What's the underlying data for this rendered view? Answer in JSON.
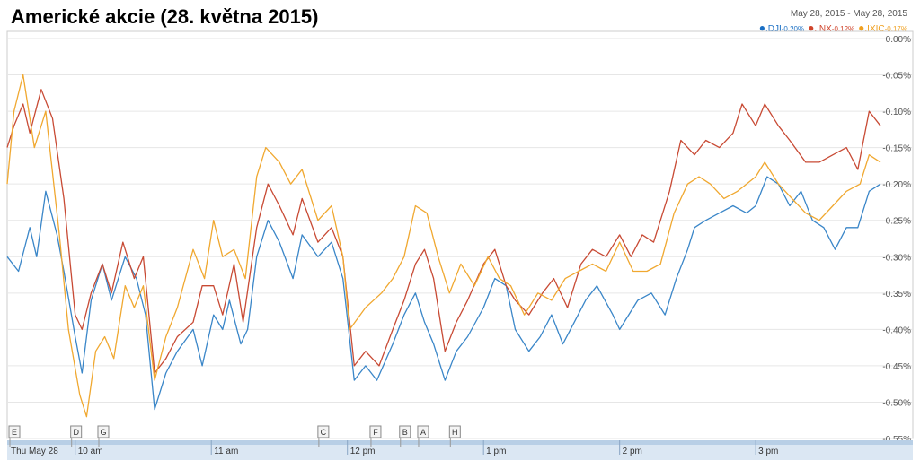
{
  "chart_data": {
    "type": "line",
    "title": "Americké akcie (28. května 2015)",
    "date_range": {
      "from": "May 28, 2015",
      "separator": "-",
      "to": "May 28, 2015"
    },
    "y_unit": "%",
    "ylim": [
      -0.55,
      0.0
    ],
    "yticks": [
      0.0,
      -0.05,
      -0.1,
      -0.15,
      -0.2,
      -0.25,
      -0.3,
      -0.35,
      -0.4,
      -0.45,
      -0.5,
      -0.55
    ],
    "ytick_labels": [
      "0.00%",
      "-0.05%",
      "-0.10%",
      "-0.15%",
      "-0.20%",
      "-0.25%",
      "-0.30%",
      "-0.35%",
      "-0.40%",
      "-0.45%",
      "-0.50%",
      "-0.55%"
    ],
    "x_range": [
      "09:30",
      "15:55"
    ],
    "xticks": [
      {
        "time": "09:30",
        "label": "Thu May 28"
      },
      {
        "time": "10:00",
        "label": "10 am"
      },
      {
        "time": "11:00",
        "label": "11 am"
      },
      {
        "time": "12:00",
        "label": "12 pm"
      },
      {
        "time": "13:00",
        "label": "1 pm"
      },
      {
        "time": "14:00",
        "label": "2 pm"
      },
      {
        "time": "15:00",
        "label": "3 pm"
      }
    ],
    "flags": [
      {
        "label": "E",
        "time": "09:30"
      },
      {
        "label": "D",
        "time": "09:58"
      },
      {
        "label": "G",
        "time": "10:10"
      },
      {
        "label": "C",
        "time": "11:47"
      },
      {
        "label": "F",
        "time": "12:10"
      },
      {
        "label": "B",
        "time": "12:23"
      },
      {
        "label": "A",
        "time": "12:31"
      },
      {
        "label": "H",
        "time": "12:45"
      }
    ],
    "legend_position": "top-right",
    "grid": true,
    "series": [
      {
        "name": ".DJI",
        "change": "-0.20%",
        "color": "#1a6fc4",
        "line_color": "#3a86c8",
        "points": [
          [
            "09:30",
            -0.3
          ],
          [
            "09:35",
            -0.32
          ],
          [
            "09:40",
            -0.26
          ],
          [
            "09:43",
            -0.3
          ],
          [
            "09:47",
            -0.21
          ],
          [
            "09:52",
            -0.27
          ],
          [
            "09:55",
            -0.32
          ],
          [
            "10:00",
            -0.41
          ],
          [
            "10:03",
            -0.46
          ],
          [
            "10:07",
            -0.36
          ],
          [
            "10:12",
            -0.31
          ],
          [
            "10:16",
            -0.36
          ],
          [
            "10:22",
            -0.3
          ],
          [
            "10:27",
            -0.33
          ],
          [
            "10:31",
            -0.38
          ],
          [
            "10:35",
            -0.51
          ],
          [
            "10:40",
            -0.46
          ],
          [
            "10:45",
            -0.43
          ],
          [
            "10:52",
            -0.4
          ],
          [
            "10:56",
            -0.45
          ],
          [
            "11:01",
            -0.38
          ],
          [
            "11:05",
            -0.4
          ],
          [
            "11:08",
            -0.36
          ],
          [
            "11:13",
            -0.42
          ],
          [
            "11:16",
            -0.4
          ],
          [
            "11:20",
            -0.3
          ],
          [
            "11:25",
            -0.25
          ],
          [
            "11:30",
            -0.28
          ],
          [
            "11:36",
            -0.33
          ],
          [
            "11:40",
            -0.27
          ],
          [
            "11:47",
            -0.3
          ],
          [
            "11:53",
            -0.28
          ],
          [
            "11:58",
            -0.33
          ],
          [
            "12:03",
            -0.47
          ],
          [
            "12:08",
            -0.45
          ],
          [
            "12:13",
            -0.47
          ],
          [
            "12:20",
            -0.42
          ],
          [
            "12:25",
            -0.38
          ],
          [
            "12:30",
            -0.35
          ],
          [
            "12:34",
            -0.39
          ],
          [
            "12:38",
            -0.42
          ],
          [
            "12:43",
            -0.47
          ],
          [
            "12:48",
            -0.43
          ],
          [
            "12:53",
            -0.41
          ],
          [
            "13:00",
            -0.37
          ],
          [
            "13:05",
            -0.33
          ],
          [
            "13:10",
            -0.34
          ],
          [
            "13:14",
            -0.4
          ],
          [
            "13:20",
            -0.43
          ],
          [
            "13:25",
            -0.41
          ],
          [
            "13:30",
            -0.38
          ],
          [
            "13:35",
            -0.42
          ],
          [
            "13:40",
            -0.39
          ],
          [
            "13:45",
            -0.36
          ],
          [
            "13:50",
            -0.34
          ],
          [
            "13:57",
            -0.38
          ],
          [
            "14:00",
            -0.4
          ],
          [
            "14:08",
            -0.36
          ],
          [
            "14:14",
            -0.35
          ],
          [
            "14:20",
            -0.38
          ],
          [
            "14:25",
            -0.33
          ],
          [
            "14:30",
            -0.29
          ],
          [
            "14:33",
            -0.26
          ],
          [
            "14:38",
            -0.25
          ],
          [
            "14:44",
            -0.24
          ],
          [
            "14:50",
            -0.23
          ],
          [
            "14:56",
            -0.24
          ],
          [
            "15:00",
            -0.23
          ],
          [
            "15:05",
            -0.19
          ],
          [
            "15:10",
            -0.2
          ],
          [
            "15:15",
            -0.23
          ],
          [
            "15:20",
            -0.21
          ],
          [
            "15:25",
            -0.25
          ],
          [
            "15:30",
            -0.26
          ],
          [
            "15:35",
            -0.29
          ],
          [
            "15:40",
            -0.26
          ],
          [
            "15:45",
            -0.26
          ],
          [
            "15:50",
            -0.21
          ],
          [
            "15:55",
            -0.2
          ]
        ]
      },
      {
        "name": ".INX",
        "change": "-0.12%",
        "color": "#d0452c",
        "line_color": "#c84a34",
        "points": [
          [
            "09:30",
            -0.15
          ],
          [
            "09:33",
            -0.12
          ],
          [
            "09:37",
            -0.09
          ],
          [
            "09:40",
            -0.13
          ],
          [
            "09:45",
            -0.07
          ],
          [
            "09:50",
            -0.11
          ],
          [
            "09:55",
            -0.22
          ],
          [
            "10:00",
            -0.38
          ],
          [
            "10:03",
            -0.4
          ],
          [
            "10:07",
            -0.35
          ],
          [
            "10:12",
            -0.31
          ],
          [
            "10:16",
            -0.35
          ],
          [
            "10:21",
            -0.28
          ],
          [
            "10:26",
            -0.33
          ],
          [
            "10:30",
            -0.3
          ],
          [
            "10:35",
            -0.46
          ],
          [
            "10:40",
            -0.44
          ],
          [
            "10:45",
            -0.41
          ],
          [
            "10:52",
            -0.39
          ],
          [
            "10:56",
            -0.34
          ],
          [
            "11:01",
            -0.34
          ],
          [
            "11:05",
            -0.38
          ],
          [
            "11:10",
            -0.31
          ],
          [
            "11:14",
            -0.39
          ],
          [
            "11:20",
            -0.26
          ],
          [
            "11:25",
            -0.2
          ],
          [
            "11:30",
            -0.23
          ],
          [
            "11:36",
            -0.27
          ],
          [
            "11:40",
            -0.22
          ],
          [
            "11:47",
            -0.28
          ],
          [
            "11:53",
            -0.26
          ],
          [
            "11:58",
            -0.3
          ],
          [
            "12:03",
            -0.45
          ],
          [
            "12:08",
            -0.43
          ],
          [
            "12:14",
            -0.45
          ],
          [
            "12:20",
            -0.4
          ],
          [
            "12:25",
            -0.36
          ],
          [
            "12:30",
            -0.31
          ],
          [
            "12:34",
            -0.29
          ],
          [
            "12:38",
            -0.33
          ],
          [
            "12:43",
            -0.43
          ],
          [
            "12:48",
            -0.39
          ],
          [
            "12:53",
            -0.36
          ],
          [
            "13:00",
            -0.31
          ],
          [
            "13:05",
            -0.29
          ],
          [
            "13:10",
            -0.34
          ],
          [
            "13:14",
            -0.36
          ],
          [
            "13:20",
            -0.38
          ],
          [
            "13:26",
            -0.35
          ],
          [
            "13:31",
            -0.33
          ],
          [
            "13:37",
            -0.37
          ],
          [
            "13:43",
            -0.31
          ],
          [
            "13:48",
            -0.29
          ],
          [
            "13:54",
            -0.3
          ],
          [
            "14:00",
            -0.27
          ],
          [
            "14:05",
            -0.3
          ],
          [
            "14:10",
            -0.27
          ],
          [
            "14:15",
            -0.28
          ],
          [
            "14:22",
            -0.21
          ],
          [
            "14:27",
            -0.14
          ],
          [
            "14:33",
            -0.16
          ],
          [
            "14:38",
            -0.14
          ],
          [
            "14:44",
            -0.15
          ],
          [
            "14:50",
            -0.13
          ],
          [
            "14:54",
            -0.09
          ],
          [
            "15:00",
            -0.12
          ],
          [
            "15:04",
            -0.09
          ],
          [
            "15:10",
            -0.12
          ],
          [
            "15:15",
            -0.14
          ],
          [
            "15:22",
            -0.17
          ],
          [
            "15:28",
            -0.17
          ],
          [
            "15:34",
            -0.16
          ],
          [
            "15:40",
            -0.15
          ],
          [
            "15:45",
            -0.18
          ],
          [
            "15:50",
            -0.1
          ],
          [
            "15:55",
            -0.12
          ]
        ]
      },
      {
        "name": ".IXIC",
        "change": "-0.17%",
        "color": "#f0a020",
        "line_color": "#f0a830",
        "points": [
          [
            "09:30",
            -0.2
          ],
          [
            "09:33",
            -0.1
          ],
          [
            "09:37",
            -0.05
          ],
          [
            "09:42",
            -0.15
          ],
          [
            "09:47",
            -0.1
          ],
          [
            "09:53",
            -0.27
          ],
          [
            "09:57",
            -0.4
          ],
          [
            "10:02",
            -0.49
          ],
          [
            "10:05",
            -0.52
          ],
          [
            "10:09",
            -0.43
          ],
          [
            "10:13",
            -0.41
          ],
          [
            "10:17",
            -0.44
          ],
          [
            "10:22",
            -0.34
          ],
          [
            "10:26",
            -0.37
          ],
          [
            "10:30",
            -0.34
          ],
          [
            "10:35",
            -0.47
          ],
          [
            "10:40",
            -0.41
          ],
          [
            "10:45",
            -0.37
          ],
          [
            "10:52",
            -0.29
          ],
          [
            "10:57",
            -0.33
          ],
          [
            "11:01",
            -0.25
          ],
          [
            "11:05",
            -0.3
          ],
          [
            "11:10",
            -0.29
          ],
          [
            "11:15",
            -0.33
          ],
          [
            "11:20",
            -0.19
          ],
          [
            "11:24",
            -0.15
          ],
          [
            "11:30",
            -0.17
          ],
          [
            "11:35",
            -0.2
          ],
          [
            "11:40",
            -0.18
          ],
          [
            "11:47",
            -0.25
          ],
          [
            "11:53",
            -0.23
          ],
          [
            "11:58",
            -0.3
          ],
          [
            "12:01",
            -0.4
          ],
          [
            "12:08",
            -0.37
          ],
          [
            "12:15",
            -0.35
          ],
          [
            "12:20",
            -0.33
          ],
          [
            "12:25",
            -0.3
          ],
          [
            "12:30",
            -0.23
          ],
          [
            "12:35",
            -0.24
          ],
          [
            "12:40",
            -0.3
          ],
          [
            "12:45",
            -0.35
          ],
          [
            "12:50",
            -0.31
          ],
          [
            "12:56",
            -0.34
          ],
          [
            "13:02",
            -0.3
          ],
          [
            "13:07",
            -0.33
          ],
          [
            "13:12",
            -0.34
          ],
          [
            "13:18",
            -0.38
          ],
          [
            "13:24",
            -0.35
          ],
          [
            "13:30",
            -0.36
          ],
          [
            "13:36",
            -0.33
          ],
          [
            "13:42",
            -0.32
          ],
          [
            "13:48",
            -0.31
          ],
          [
            "13:54",
            -0.32
          ],
          [
            "14:00",
            -0.28
          ],
          [
            "14:06",
            -0.32
          ],
          [
            "14:12",
            -0.32
          ],
          [
            "14:18",
            -0.31
          ],
          [
            "14:24",
            -0.24
          ],
          [
            "14:30",
            -0.2
          ],
          [
            "14:35",
            -0.19
          ],
          [
            "14:40",
            -0.2
          ],
          [
            "14:46",
            -0.22
          ],
          [
            "14:52",
            -0.21
          ],
          [
            "15:00",
            -0.19
          ],
          [
            "15:04",
            -0.17
          ],
          [
            "15:10",
            -0.2
          ],
          [
            "15:16",
            -0.22
          ],
          [
            "15:22",
            -0.24
          ],
          [
            "15:28",
            -0.25
          ],
          [
            "15:34",
            -0.23
          ],
          [
            "15:40",
            -0.21
          ],
          [
            "15:46",
            -0.2
          ],
          [
            "15:50",
            -0.16
          ],
          [
            "15:55",
            -0.17
          ]
        ]
      }
    ]
  }
}
